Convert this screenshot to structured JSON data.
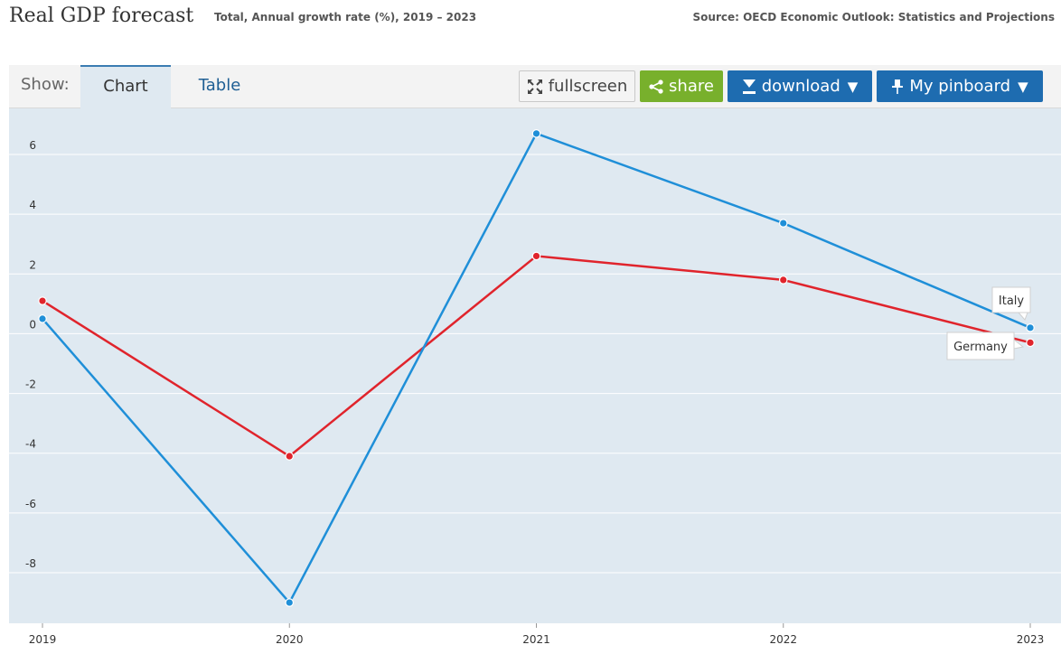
{
  "header": {
    "title": "Real GDP forecast",
    "subtitle": "Total, Annual growth rate (%), 2019 – 2023",
    "source": "Source: OECD Economic Outlook: Statistics and Projections"
  },
  "toolbar": {
    "show_label": "Show:",
    "tabs": [
      {
        "label": "Chart",
        "active": true
      },
      {
        "label": "Table",
        "active": false
      }
    ],
    "fullscreen_label": "fullscreen",
    "share_label": "share",
    "download_label": "download",
    "pinboard_label": "My pinboard",
    "caret": "▼"
  },
  "colors": {
    "plot_bg": "#dfe9f1",
    "grid": "#ffffff",
    "italy": "#1f8fd8",
    "germany": "#e0242c"
  },
  "chart_data": {
    "type": "line",
    "title": "Real GDP forecast",
    "subtitle": "Total, Annual growth rate (%), 2019 – 2023",
    "xlabel": "",
    "ylabel": "",
    "categories": [
      "2019",
      "2020",
      "2021",
      "2022",
      "2023"
    ],
    "ylim": [
      -9.5,
      7
    ],
    "yticks": [
      6,
      4,
      2,
      0,
      -2,
      -4,
      -6,
      -8
    ],
    "ytick_labels": [
      "6",
      "4",
      "2",
      "0",
      "-2",
      "-4",
      "-6",
      "-8"
    ],
    "grid": true,
    "series": [
      {
        "name": "Italy",
        "color": "#1f8fd8",
        "values": [
          0.5,
          -9.0,
          6.7,
          3.7,
          0.2
        ]
      },
      {
        "name": "Germany",
        "color": "#e0242c",
        "values": [
          1.1,
          -4.1,
          2.6,
          1.8,
          -0.3
        ]
      }
    ]
  }
}
